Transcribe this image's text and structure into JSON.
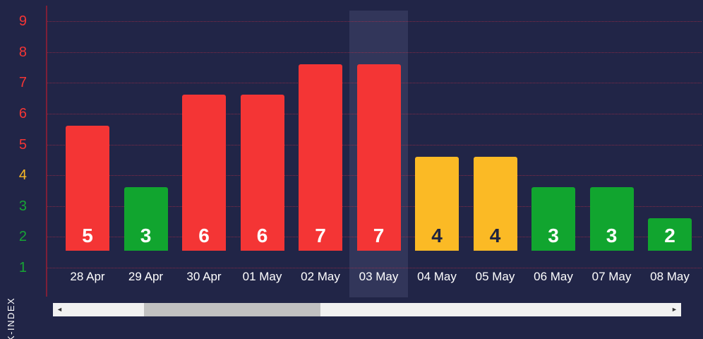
{
  "colors": {
    "background": "#212547",
    "grid": "rgba(232,45,70,0.5)",
    "axis_line": "#7d1f38",
    "highlight": "rgba(173,181,231,0.12)",
    "scroll_track": "#f1f1f1",
    "scroll_thumb": "#c1c1c1",
    "scroll_arrow": "#333333",
    "text": "#ffffff"
  },
  "axis": {
    "y_label": "K-INDEX",
    "ticks": [
      {
        "value": 9,
        "color": "#f43535"
      },
      {
        "value": 8,
        "color": "#f43535"
      },
      {
        "value": 7,
        "color": "#f43535"
      },
      {
        "value": 6,
        "color": "#f43535"
      },
      {
        "value": 5,
        "color": "#f43535"
      },
      {
        "value": 4,
        "color": "#fbba25"
      },
      {
        "value": 3,
        "color": "#16a534"
      },
      {
        "value": 2,
        "color": "#16a534"
      },
      {
        "value": 1,
        "color": "#16a534"
      }
    ]
  },
  "chart_data": {
    "type": "bar",
    "title": "",
    "xlabel": "",
    "ylabel": "K-INDEX",
    "ylim": [
      0,
      9
    ],
    "grid": true,
    "categories": [
      "28 Apr",
      "29 Apr",
      "30 Apr",
      "01 May",
      "02 May",
      "03 May",
      "04 May",
      "05 May",
      "06 May",
      "07 May",
      "08 May"
    ],
    "values": [
      5,
      3,
      6,
      6,
      7,
      7,
      4,
      4,
      3,
      3,
      2
    ],
    "bar_colors": [
      "#f43535",
      "#11a52f",
      "#f43535",
      "#f43535",
      "#f43535",
      "#f43535",
      "#fbba25",
      "#fbba25",
      "#11a52f",
      "#11a52f",
      "#11a52f"
    ],
    "value_label_colors": [
      "#ffffff",
      "#ffffff",
      "#ffffff",
      "#ffffff",
      "#ffffff",
      "#ffffff",
      "#20243f",
      "#20243f",
      "#ffffff",
      "#ffffff",
      "#ffffff"
    ],
    "highlighted_index": 5,
    "highlighted_category": "03 May"
  },
  "scrollbar": {
    "left_arrow": "◄",
    "right_arrow": "►"
  }
}
